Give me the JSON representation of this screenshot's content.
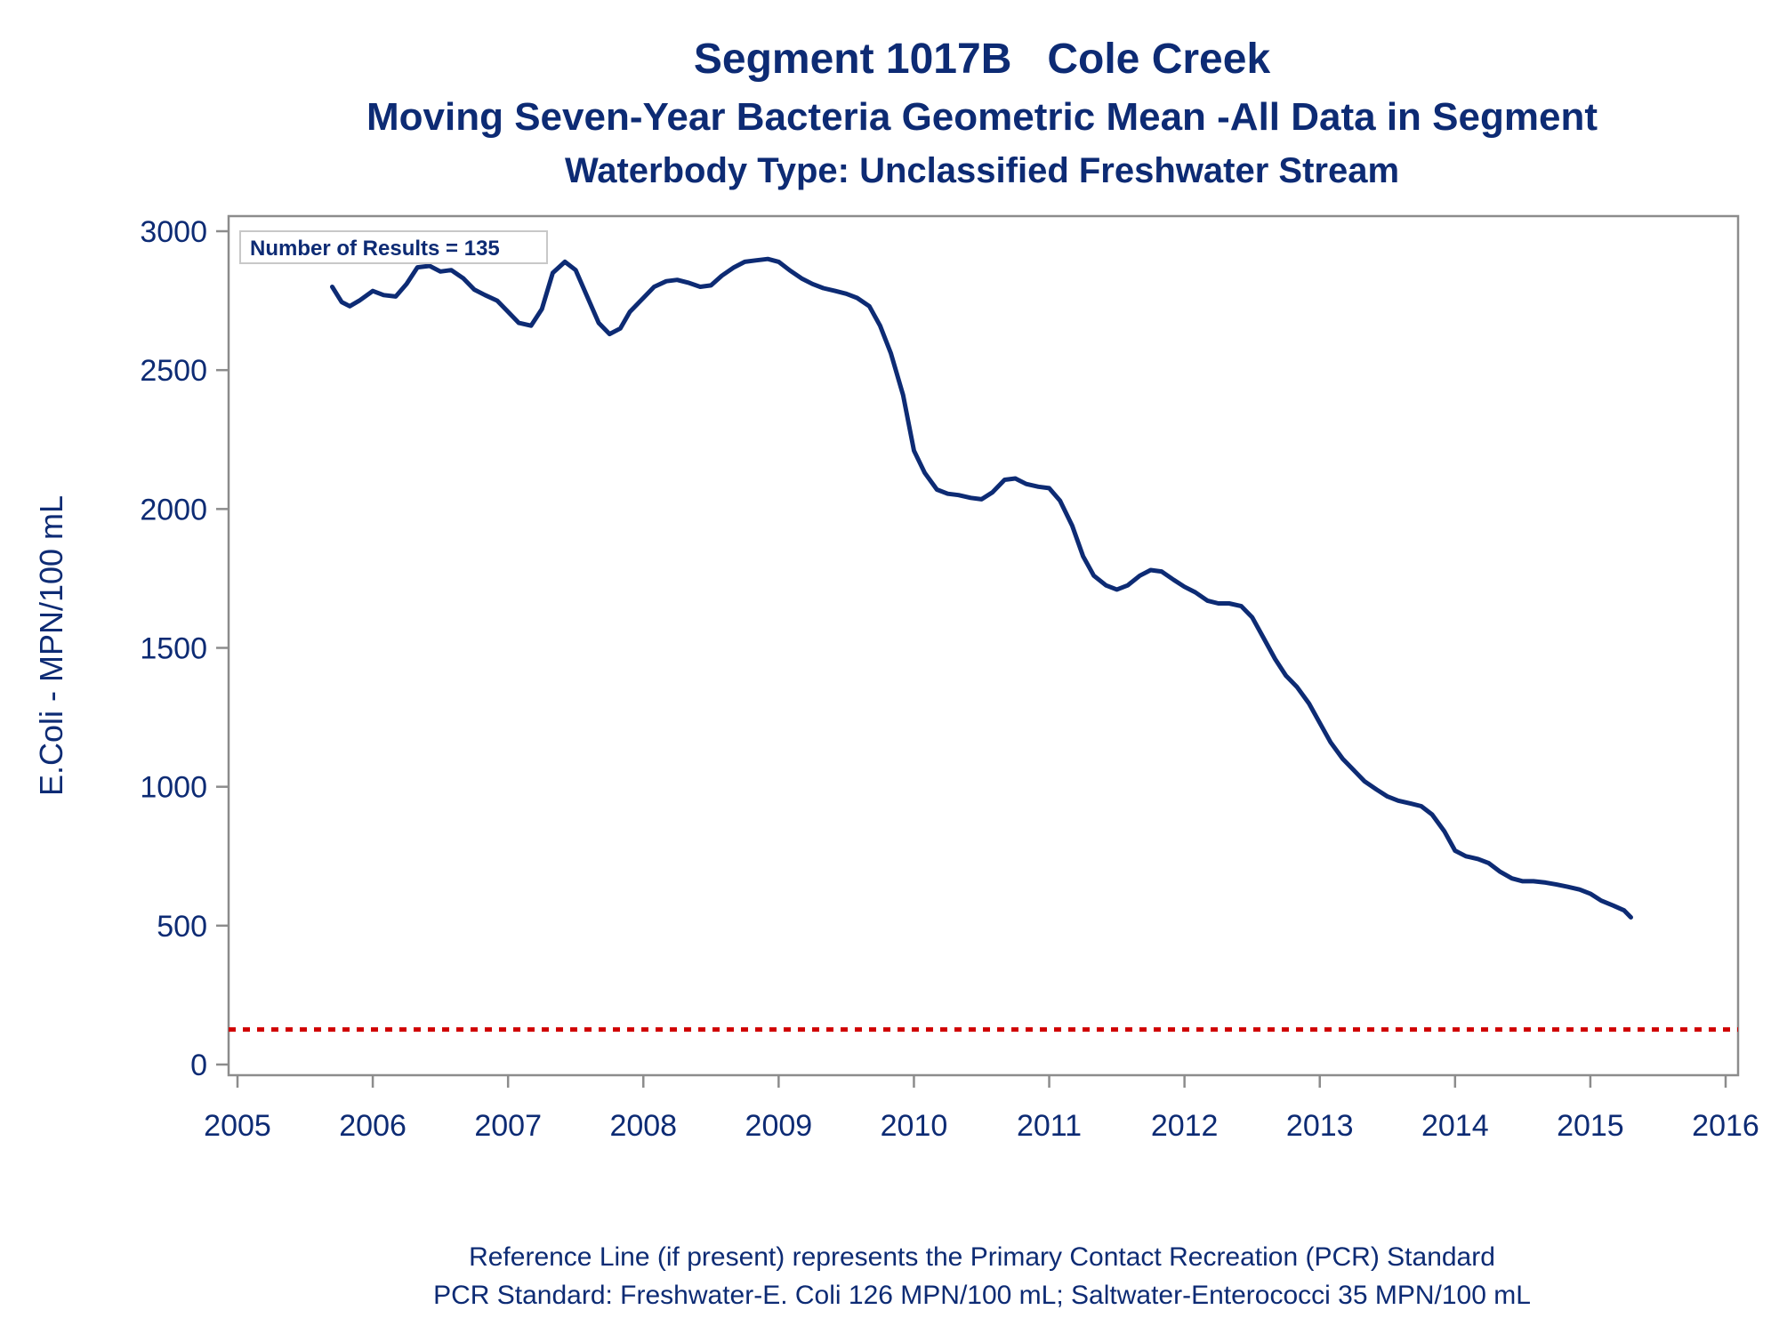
{
  "colors": {
    "text": "#0d2b74",
    "series": "#0d2b74",
    "reference": "#d00000",
    "frame": "#8c8c8c"
  },
  "chart_data": {
    "type": "line",
    "title": "Segment 1017B   Cole Creek",
    "subtitle": "Moving Seven-Year Bacteria Geometric Mean -All Data in Segment",
    "subtitle2": "Waterbody Type: Unclassified Freshwater Stream",
    "ylabel": "E.Coli - MPN/100 mL",
    "xlabel": "",
    "xlim": [
      2005,
      2016
    ],
    "ylim": [
      -30,
      3060
    ],
    "x_ticks": [
      "2005",
      "2006",
      "2007",
      "2008",
      "2009",
      "2010",
      "2011",
      "2012",
      "2013",
      "2014",
      "2015",
      "2016"
    ],
    "y_ticks": [
      "0",
      "500",
      "1000",
      "1500",
      "2000",
      "2500",
      "3000"
    ],
    "inset_label": "Number of Results = 135",
    "grid": false,
    "reference_line": {
      "value": 126,
      "style": "dotted"
    },
    "series": [
      {
        "x": [
          2005.7,
          2005.77,
          2005.83,
          2005.9,
          2006.0,
          2006.08,
          2006.17,
          2006.25,
          2006.33,
          2006.42,
          2006.5,
          2006.58,
          2006.67,
          2006.75,
          2006.83,
          2006.92,
          2007.0,
          2007.08,
          2007.17,
          2007.25,
          2007.33,
          2007.42,
          2007.5,
          2007.58,
          2007.67,
          2007.75,
          2007.83,
          2007.9,
          2008.0,
          2008.08,
          2008.17,
          2008.25,
          2008.33,
          2008.42,
          2008.5,
          2008.58,
          2008.67,
          2008.75,
          2008.83,
          2008.92,
          2009.0,
          2009.08,
          2009.17,
          2009.25,
          2009.33,
          2009.42,
          2009.5,
          2009.58,
          2009.67,
          2009.75,
          2009.83,
          2009.92,
          2010.0,
          2010.08,
          2010.17,
          2010.25,
          2010.33,
          2010.42,
          2010.5,
          2010.58,
          2010.67,
          2010.75,
          2010.83,
          2010.92,
          2011.0,
          2011.08,
          2011.17,
          2011.25,
          2011.33,
          2011.42,
          2011.5,
          2011.58,
          2011.67,
          2011.75,
          2011.83,
          2011.92,
          2012.0,
          2012.08,
          2012.17,
          2012.25,
          2012.33,
          2012.42,
          2012.5,
          2012.58,
          2012.67,
          2012.75,
          2012.83,
          2012.92,
          2013.0,
          2013.08,
          2013.17,
          2013.25,
          2013.33,
          2013.42,
          2013.5,
          2013.58,
          2013.67,
          2013.75,
          2013.83,
          2013.92,
          2014.0,
          2014.08,
          2014.17,
          2014.25,
          2014.33,
          2014.42,
          2014.5,
          2014.58,
          2014.67,
          2014.75,
          2014.83,
          2014.92,
          2015.0,
          2015.08,
          2015.17,
          2015.25,
          2015.3
        ],
        "values": [
          2800,
          2745,
          2730,
          2750,
          2785,
          2770,
          2765,
          2810,
          2870,
          2875,
          2855,
          2860,
          2830,
          2790,
          2770,
          2750,
          2710,
          2670,
          2660,
          2720,
          2850,
          2890,
          2860,
          2770,
          2670,
          2630,
          2650,
          2710,
          2760,
          2800,
          2820,
          2825,
          2815,
          2800,
          2805,
          2840,
          2870,
          2890,
          2895,
          2900,
          2890,
          2860,
          2830,
          2810,
          2795,
          2785,
          2775,
          2760,
          2730,
          2660,
          2560,
          2410,
          2210,
          2130,
          2070,
          2055,
          2050,
          2040,
          2035,
          2060,
          2105,
          2110,
          2090,
          2080,
          2075,
          2030,
          1940,
          1830,
          1760,
          1725,
          1710,
          1725,
          1760,
          1780,
          1775,
          1745,
          1720,
          1700,
          1670,
          1660,
          1660,
          1650,
          1610,
          1540,
          1460,
          1400,
          1360,
          1300,
          1230,
          1160,
          1100,
          1060,
          1020,
          990,
          965,
          950,
          940,
          930,
          900,
          840,
          770,
          750,
          740,
          725,
          695,
          670,
          660,
          660,
          655,
          648,
          640,
          630,
          615,
          590,
          572,
          555,
          530
        ]
      }
    ]
  },
  "footer": {
    "line1": "Reference Line (if present) represents the Primary Contact Recreation (PCR) Standard",
    "line2": "PCR Standard: Freshwater-E. Coli 126 MPN/100 mL; Saltwater-Enterococci 35 MPN/100 mL"
  }
}
